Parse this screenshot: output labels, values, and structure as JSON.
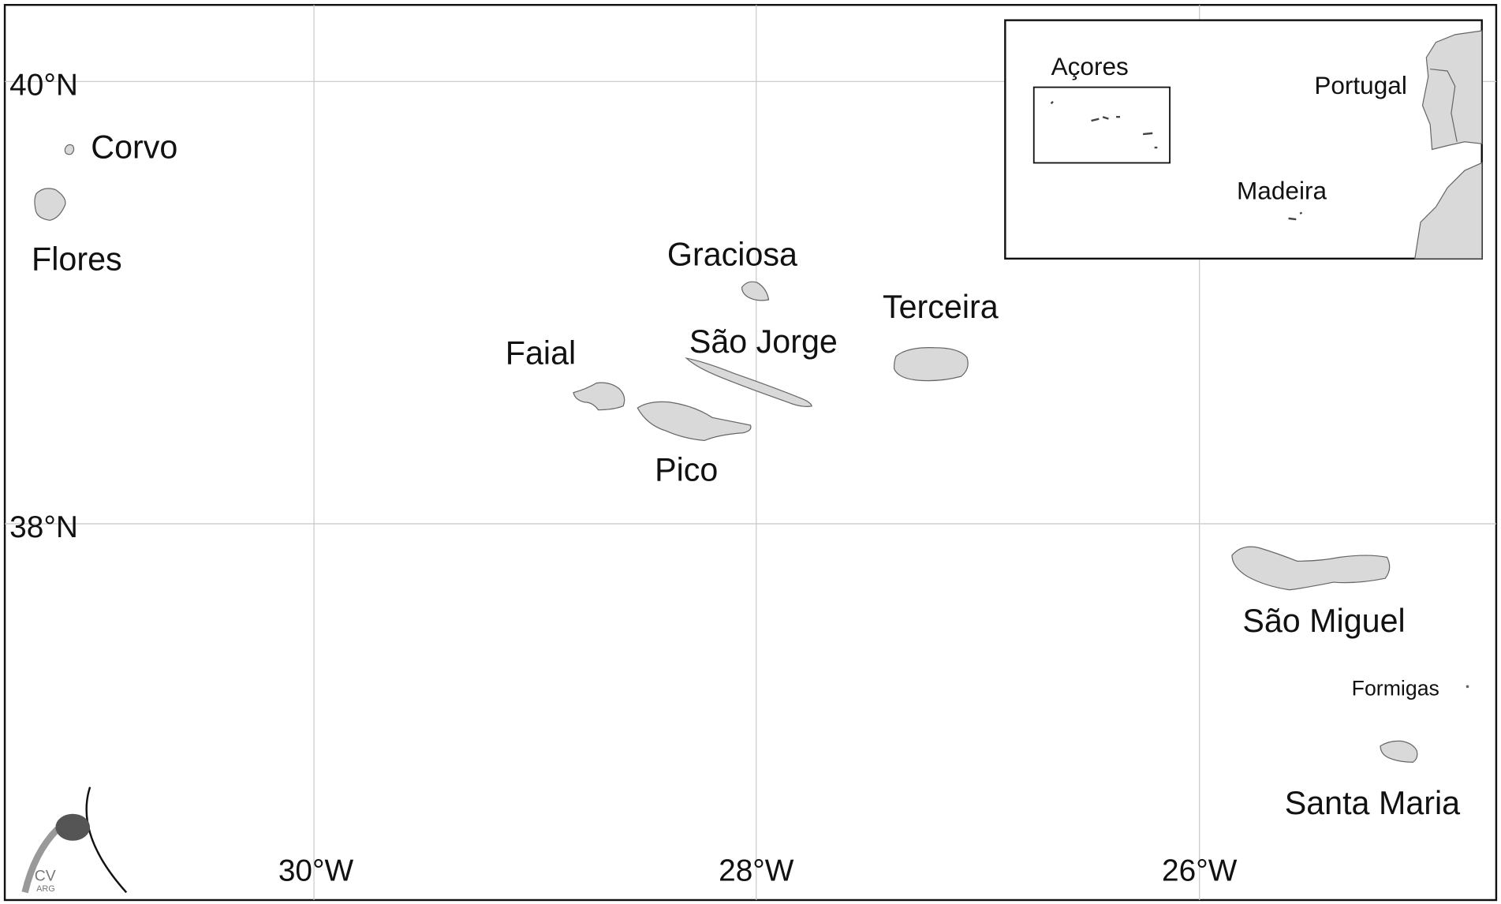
{
  "map": {
    "grid_labels": {
      "lat": [
        "40°N",
        "38°N"
      ],
      "lon": [
        "30°W",
        "28°W",
        "26°W"
      ]
    },
    "islands": [
      "Corvo",
      "Flores",
      "Graciosa",
      "São Jorge",
      "Terceira",
      "Faial",
      "Pico",
      "São Miguel",
      "Formigas",
      "Santa Maria"
    ],
    "inset": {
      "labels": [
        "Açores",
        "Portugal",
        "Madeira"
      ]
    },
    "logo": {
      "title": "CV",
      "subtitle": "ARG"
    }
  }
}
